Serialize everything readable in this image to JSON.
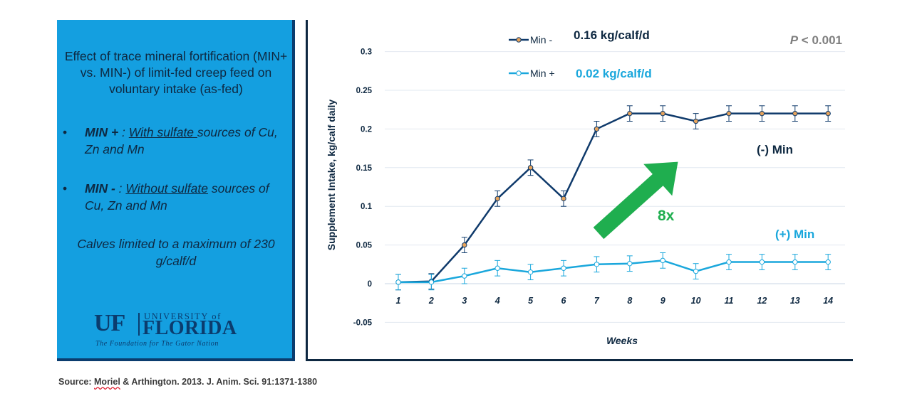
{
  "panel": {
    "title": "Effect of trace mineral fortification (MIN+ vs. MIN-)  of limit-fed creep feed on voluntary intake (as-fed)",
    "bullets": [
      {
        "symbol": "•",
        "label": "MIN + ",
        "sep": ": ",
        "underlined": "With sulfate ",
        "rest": "sources of Cu, Zn and Mn"
      },
      {
        "symbol": "•",
        "label": "MIN - ",
        "sep": ": ",
        "underlined": "Without sulfate",
        "rest": " sources of Cu, Zn and Mn"
      }
    ],
    "note": "Calves limited to a maximum of 230 g/calf/d",
    "logo": {
      "mark": "UF",
      "university": "UNIVERSITY of",
      "name": "FLORIDA",
      "tagline": "The Foundation for The Gator Nation"
    }
  },
  "source": {
    "label": "Source: ",
    "author1": "Moriel",
    "rest": " & Arthington. 2013. J. Anim. Sci. 91:1371-1380"
  },
  "colors": {
    "panel_bg": "#149fe0",
    "dark": "#0e2841",
    "min_minus_line": "#0f3a6b",
    "min_plus_line": "#1aa7dc",
    "marker_fill": "#e7a45c",
    "arrow": "#1fae4f",
    "pvalue": "#7f7f7f"
  },
  "chart_data": {
    "type": "line",
    "ylabel": "Supplement  Intake, kg/calf daily",
    "xlabel": "Weeks",
    "x": [
      1,
      2,
      3,
      4,
      5,
      6,
      7,
      8,
      9,
      10,
      11,
      12,
      13,
      14
    ],
    "ylim": [
      -0.05,
      0.3
    ],
    "yticks": [
      "0.3",
      "0.25",
      "0.2",
      "0.15",
      "0.1",
      "0.05",
      "0",
      "-0.05"
    ],
    "ytick_values": [
      0.3,
      0.25,
      0.2,
      0.15,
      0.1,
      0.05,
      0,
      -0.05
    ],
    "grid": true,
    "series": [
      {
        "name": "Min -",
        "legend_value": "0.16 kg/calf/d",
        "label": "(-) Min",
        "values": [
          0.002,
          0.003,
          0.05,
          0.11,
          0.15,
          0.11,
          0.2,
          0.22,
          0.22,
          0.21,
          0.22,
          0.22,
          0.22,
          0.22
        ],
        "error": [
          0.01,
          0.01,
          0.01,
          0.01,
          0.01,
          0.01,
          0.01,
          0.01,
          0.01,
          0.01,
          0.01,
          0.01,
          0.01,
          0.01
        ]
      },
      {
        "name": "Min +",
        "legend_value": "0.02 kg/calf/d",
        "label": "(+) Min",
        "values": [
          0.002,
          0.002,
          0.01,
          0.02,
          0.015,
          0.02,
          0.025,
          0.026,
          0.03,
          0.016,
          0.028,
          0.028,
          0.028,
          0.028
        ],
        "error": [
          0.01,
          0.01,
          0.01,
          0.01,
          0.01,
          0.01,
          0.01,
          0.01,
          0.01,
          0.01,
          0.01,
          0.01,
          0.01,
          0.01
        ]
      }
    ],
    "pvalue": {
      "p": "P",
      "rest": " < 0.001"
    },
    "annotation": "8x"
  }
}
